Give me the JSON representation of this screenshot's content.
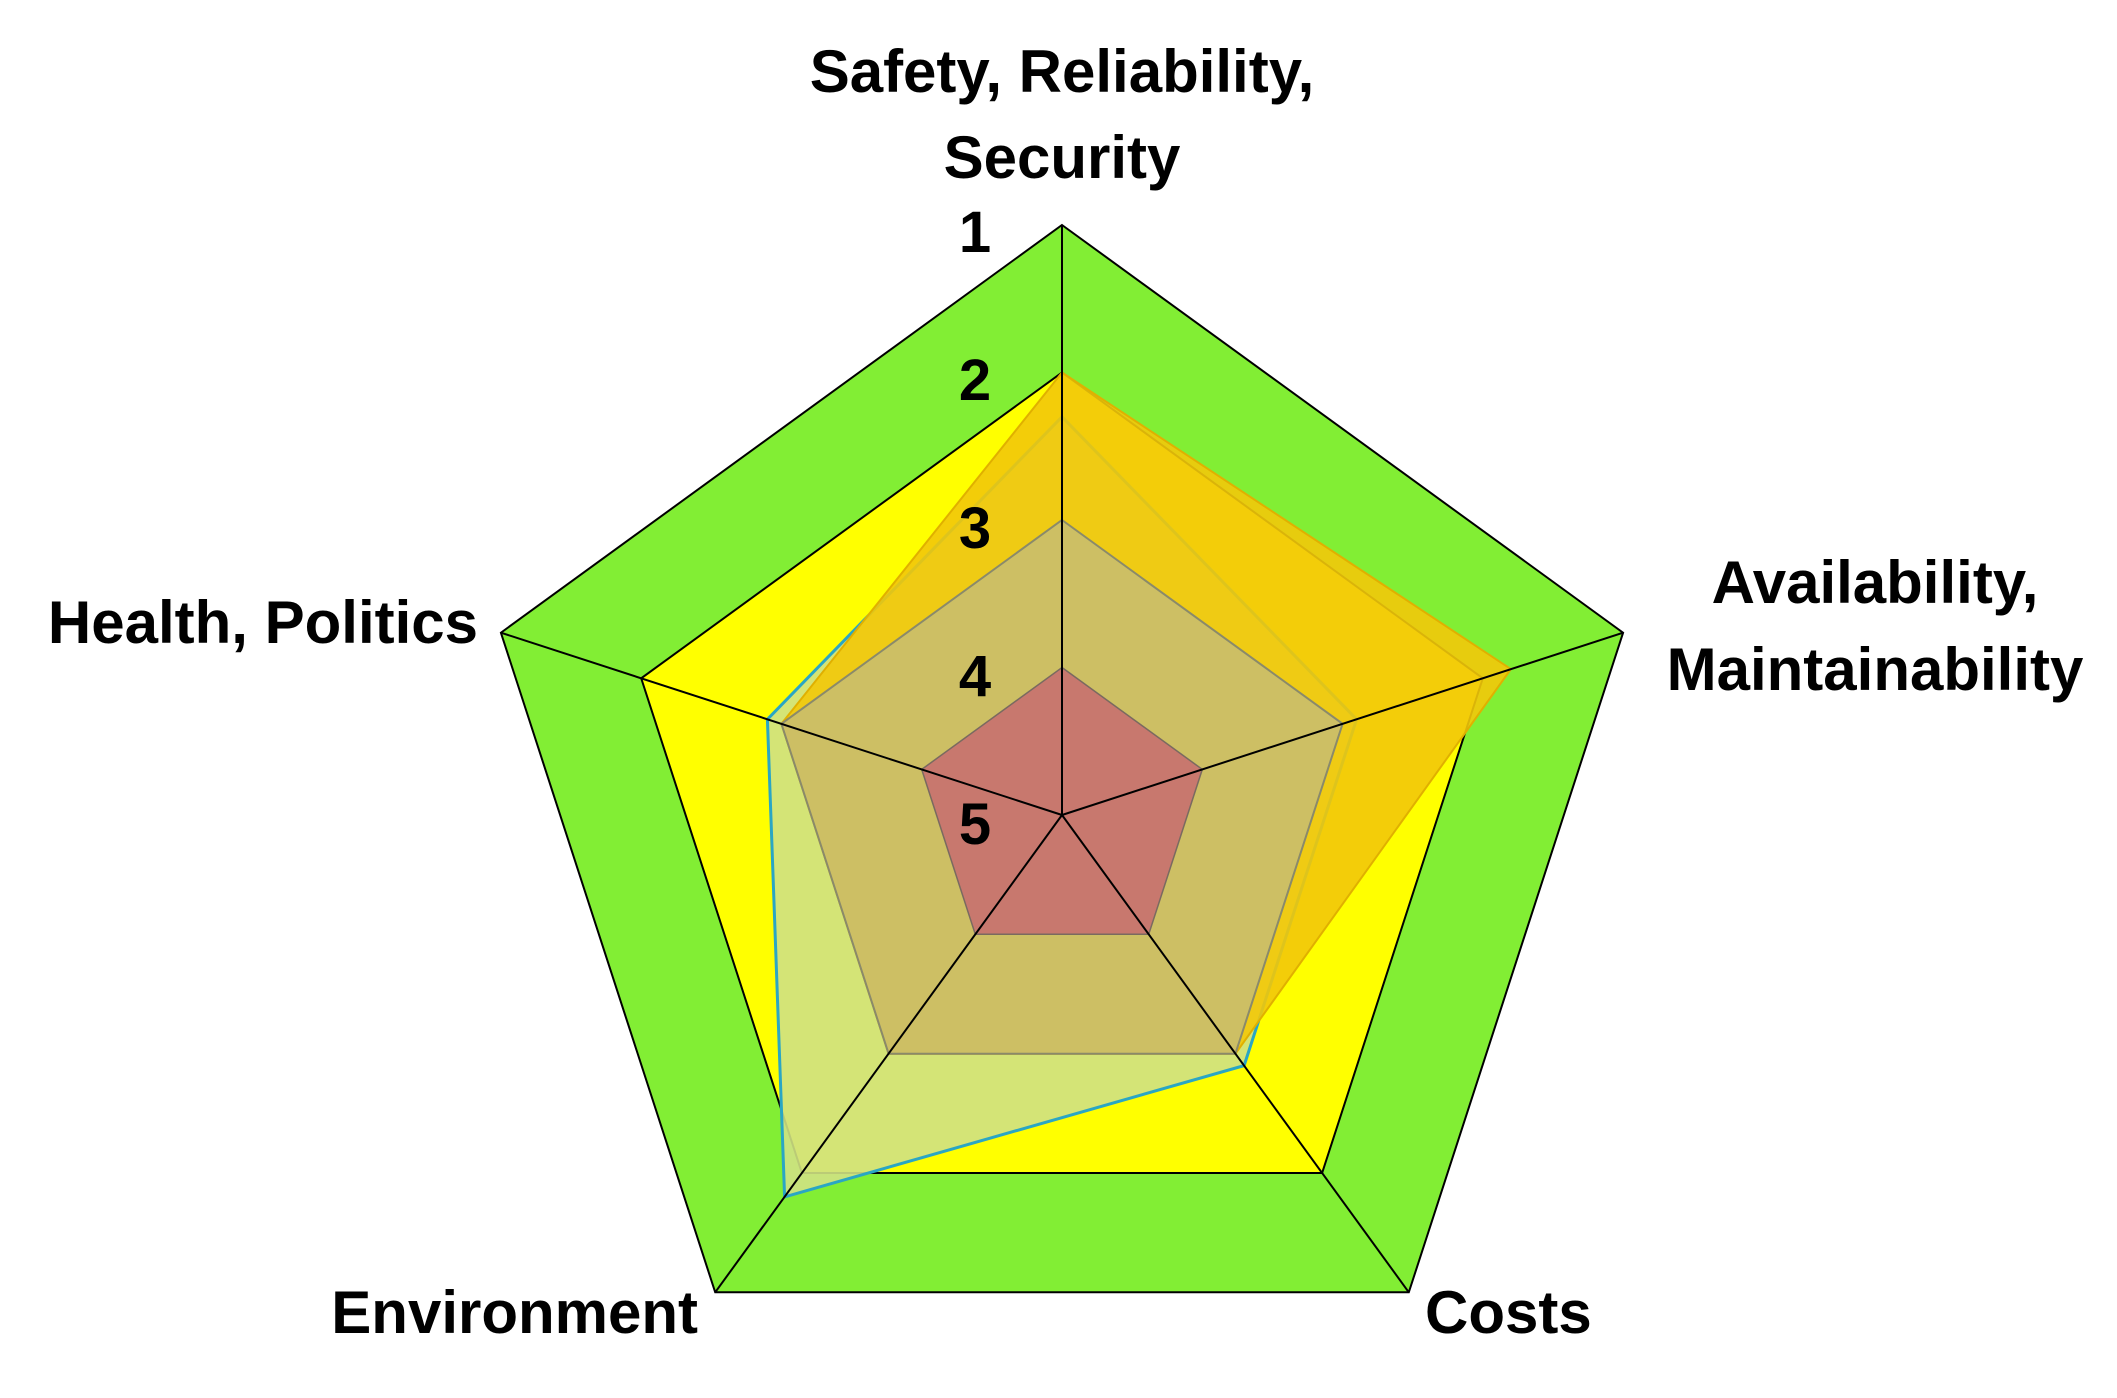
{
  "chart_data": {
    "type": "radar",
    "categories": [
      "Safety, Reliability, Security",
      "Availability, Maintainability",
      "Costs",
      "Environment",
      "Health, Politics"
    ],
    "category_label_lines": [
      [
        "Safety, Reliability,",
        "Security"
      ],
      [
        "Availability,",
        "Maintainability"
      ],
      [
        "Costs"
      ],
      [
        "Environment"
      ],
      [
        "Health, Politics"
      ]
    ],
    "scale_ticks": [
      "1",
      "2",
      "3",
      "4",
      "5"
    ],
    "axis_range": [
      1,
      5
    ],
    "bands": [
      {
        "level": 1,
        "color": "#82ee34"
      },
      {
        "level": 2,
        "color": "#ffff00"
      },
      {
        "level": 3,
        "color": "#c8c474"
      },
      {
        "level": 4,
        "color": "#c8786e"
      }
    ],
    "series": [
      {
        "values": [
          2.3,
          2.9,
          2.9,
          1.8,
          2.9
        ],
        "fill": "#cfe183",
        "stroke": "#2aa6c4"
      },
      {
        "values": [
          2.0,
          1.8,
          3.0,
          3.0,
          3.0
        ],
        "fill": "#f2c80a",
        "stroke": "#e0b000"
      },
      {
        "values": [
          3.0,
          3.0,
          3.0,
          3.0,
          3.0
        ],
        "fill": "#c7bd72",
        "stroke": "#8a8a6a"
      }
    ]
  }
}
